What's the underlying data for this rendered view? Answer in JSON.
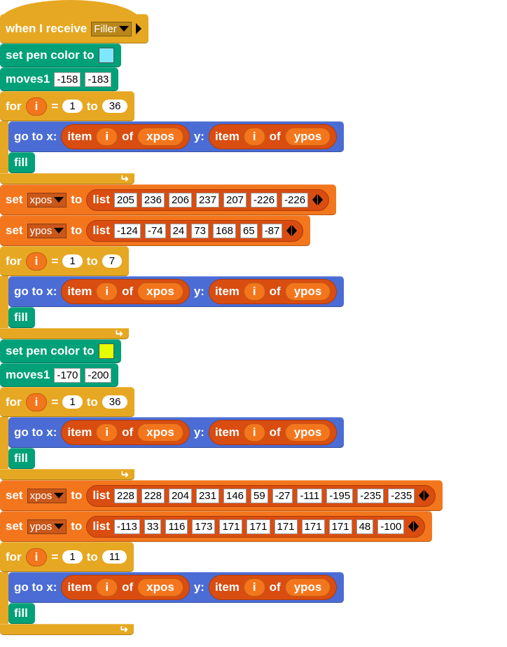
{
  "colors": {
    "control": "#e6a822",
    "pen": "#00a178",
    "motion": "#4a6cd4",
    "variables": "#f3761d",
    "lists": "#d94d11"
  },
  "script": [
    {
      "kind": "hat",
      "parts": [
        {
          "t": "label",
          "v": "when I receive"
        },
        {
          "t": "dropdown",
          "v": "Filler"
        },
        {
          "t": "rtri"
        }
      ]
    },
    {
      "kind": "pen",
      "parts": [
        {
          "t": "label",
          "v": "set pen color to"
        },
        {
          "t": "color",
          "v": "#7fe6ff"
        }
      ]
    },
    {
      "kind": "pen",
      "parts": [
        {
          "t": "label",
          "v": "moves1"
        },
        {
          "t": "input",
          "v": "-158"
        },
        {
          "t": "input",
          "v": "-183"
        }
      ]
    },
    {
      "kind": "for",
      "parts": [
        {
          "t": "label",
          "v": "for"
        },
        {
          "t": "var",
          "v": "i"
        },
        {
          "t": "label",
          "v": "="
        },
        {
          "t": "num",
          "v": "1"
        },
        {
          "t": "label",
          "v": "to"
        },
        {
          "t": "num",
          "v": "36"
        }
      ],
      "body": [
        {
          "kind": "motion",
          "parts": [
            {
              "t": "label",
              "v": "go to x:"
            },
            {
              "t": "rep",
              "parts": [
                {
                  "t": "label",
                  "v": "item"
                },
                {
                  "t": "var",
                  "v": "i"
                },
                {
                  "t": "label",
                  "v": "of"
                },
                {
                  "t": "var",
                  "v": "xpos"
                }
              ]
            },
            {
              "t": "label",
              "v": "y:"
            },
            {
              "t": "rep",
              "parts": [
                {
                  "t": "label",
                  "v": "item"
                },
                {
                  "t": "var",
                  "v": "i"
                },
                {
                  "t": "label",
                  "v": "of"
                },
                {
                  "t": "var",
                  "v": "ypos"
                }
              ]
            }
          ]
        },
        {
          "kind": "fill",
          "parts": [
            {
              "t": "label",
              "v": "fill"
            }
          ]
        }
      ]
    },
    {
      "kind": "var",
      "parts": [
        {
          "t": "label",
          "v": "set"
        },
        {
          "t": "dropdown",
          "v": "xpos"
        },
        {
          "t": "label",
          "v": "to"
        },
        {
          "t": "rep",
          "parts": [
            {
              "t": "label",
              "v": "list"
            },
            {
              "t": "input",
              "v": "205"
            },
            {
              "t": "input",
              "v": "236"
            },
            {
              "t": "input",
              "v": "206"
            },
            {
              "t": "input",
              "v": "237"
            },
            {
              "t": "input",
              "v": "207"
            },
            {
              "t": "input",
              "v": "-226"
            },
            {
              "t": "input",
              "v": "-226"
            },
            {
              "t": "arrows"
            }
          ]
        }
      ]
    },
    {
      "kind": "var",
      "parts": [
        {
          "t": "label",
          "v": "set"
        },
        {
          "t": "dropdown",
          "v": "ypos"
        },
        {
          "t": "label",
          "v": "to"
        },
        {
          "t": "rep",
          "parts": [
            {
              "t": "label",
              "v": "list"
            },
            {
              "t": "input",
              "v": "-124"
            },
            {
              "t": "input",
              "v": "-74"
            },
            {
              "t": "input",
              "v": "24"
            },
            {
              "t": "input",
              "v": "73"
            },
            {
              "t": "input",
              "v": "168"
            },
            {
              "t": "input",
              "v": "65"
            },
            {
              "t": "input",
              "v": "-87"
            },
            {
              "t": "arrows"
            }
          ]
        }
      ]
    },
    {
      "kind": "for",
      "parts": [
        {
          "t": "label",
          "v": "for"
        },
        {
          "t": "var",
          "v": "i"
        },
        {
          "t": "label",
          "v": "="
        },
        {
          "t": "num",
          "v": "1"
        },
        {
          "t": "label",
          "v": "to"
        },
        {
          "t": "num",
          "v": "7"
        }
      ],
      "body": [
        {
          "kind": "motion",
          "parts": [
            {
              "t": "label",
              "v": "go to x:"
            },
            {
              "t": "rep",
              "parts": [
                {
                  "t": "label",
                  "v": "item"
                },
                {
                  "t": "var",
                  "v": "i"
                },
                {
                  "t": "label",
                  "v": "of"
                },
                {
                  "t": "var",
                  "v": "xpos"
                }
              ]
            },
            {
              "t": "label",
              "v": "y:"
            },
            {
              "t": "rep",
              "parts": [
                {
                  "t": "label",
                  "v": "item"
                },
                {
                  "t": "var",
                  "v": "i"
                },
                {
                  "t": "label",
                  "v": "of"
                },
                {
                  "t": "var",
                  "v": "ypos"
                }
              ]
            }
          ]
        },
        {
          "kind": "fill",
          "parts": [
            {
              "t": "label",
              "v": "fill"
            }
          ]
        }
      ]
    },
    {
      "kind": "pen",
      "parts": [
        {
          "t": "label",
          "v": "set pen color to"
        },
        {
          "t": "color",
          "v": "#e6ff00"
        }
      ]
    },
    {
      "kind": "pen",
      "parts": [
        {
          "t": "label",
          "v": "moves1"
        },
        {
          "t": "input",
          "v": "-170"
        },
        {
          "t": "input",
          "v": "-200"
        }
      ]
    },
    {
      "kind": "for",
      "parts": [
        {
          "t": "label",
          "v": "for"
        },
        {
          "t": "var",
          "v": "i"
        },
        {
          "t": "label",
          "v": "="
        },
        {
          "t": "num",
          "v": "1"
        },
        {
          "t": "label",
          "v": "to"
        },
        {
          "t": "num",
          "v": "36"
        }
      ],
      "body": [
        {
          "kind": "motion",
          "parts": [
            {
              "t": "label",
              "v": "go to x:"
            },
            {
              "t": "rep",
              "parts": [
                {
                  "t": "label",
                  "v": "item"
                },
                {
                  "t": "var",
                  "v": "i"
                },
                {
                  "t": "label",
                  "v": "of"
                },
                {
                  "t": "var",
                  "v": "xpos"
                }
              ]
            },
            {
              "t": "label",
              "v": "y:"
            },
            {
              "t": "rep",
              "parts": [
                {
                  "t": "label",
                  "v": "item"
                },
                {
                  "t": "var",
                  "v": "i"
                },
                {
                  "t": "label",
                  "v": "of"
                },
                {
                  "t": "var",
                  "v": "ypos"
                }
              ]
            }
          ]
        },
        {
          "kind": "fill",
          "parts": [
            {
              "t": "label",
              "v": "fill"
            }
          ]
        }
      ]
    },
    {
      "kind": "var",
      "parts": [
        {
          "t": "label",
          "v": "set"
        },
        {
          "t": "dropdown",
          "v": "xpos"
        },
        {
          "t": "label",
          "v": "to"
        },
        {
          "t": "rep",
          "parts": [
            {
              "t": "label",
              "v": "list"
            },
            {
              "t": "input",
              "v": "228"
            },
            {
              "t": "input",
              "v": "228"
            },
            {
              "t": "input",
              "v": "204"
            },
            {
              "t": "input",
              "v": "231"
            },
            {
              "t": "input",
              "v": "146"
            },
            {
              "t": "input",
              "v": "59"
            },
            {
              "t": "input",
              "v": "-27"
            },
            {
              "t": "input",
              "v": "-111"
            },
            {
              "t": "input",
              "v": "-195"
            },
            {
              "t": "input",
              "v": "-235"
            },
            {
              "t": "input",
              "v": "-235"
            },
            {
              "t": "arrows"
            }
          ]
        }
      ]
    },
    {
      "kind": "var",
      "parts": [
        {
          "t": "label",
          "v": "set"
        },
        {
          "t": "dropdown",
          "v": "ypos"
        },
        {
          "t": "label",
          "v": "to"
        },
        {
          "t": "rep",
          "parts": [
            {
              "t": "label",
              "v": "list"
            },
            {
              "t": "input",
              "v": "-113"
            },
            {
              "t": "input",
              "v": "33"
            },
            {
              "t": "input",
              "v": "116"
            },
            {
              "t": "input",
              "v": "173"
            },
            {
              "t": "input",
              "v": "171"
            },
            {
              "t": "input",
              "v": "171"
            },
            {
              "t": "input",
              "v": "171"
            },
            {
              "t": "input",
              "v": "171"
            },
            {
              "t": "input",
              "v": "171"
            },
            {
              "t": "input",
              "v": "48"
            },
            {
              "t": "input",
              "v": "-100"
            },
            {
              "t": "arrows"
            }
          ]
        }
      ]
    },
    {
      "kind": "for",
      "parts": [
        {
          "t": "label",
          "v": "for"
        },
        {
          "t": "var",
          "v": "i"
        },
        {
          "t": "label",
          "v": "="
        },
        {
          "t": "num",
          "v": "1"
        },
        {
          "t": "label",
          "v": "to"
        },
        {
          "t": "num",
          "v": "11"
        }
      ],
      "body": [
        {
          "kind": "motion",
          "parts": [
            {
              "t": "label",
              "v": "go to x:"
            },
            {
              "t": "rep",
              "parts": [
                {
                  "t": "label",
                  "v": "item"
                },
                {
                  "t": "var",
                  "v": "i"
                },
                {
                  "t": "label",
                  "v": "of"
                },
                {
                  "t": "var",
                  "v": "xpos"
                }
              ]
            },
            {
              "t": "label",
              "v": "y:"
            },
            {
              "t": "rep",
              "parts": [
                {
                  "t": "label",
                  "v": "item"
                },
                {
                  "t": "var",
                  "v": "i"
                },
                {
                  "t": "label",
                  "v": "of"
                },
                {
                  "t": "var",
                  "v": "ypos"
                }
              ]
            }
          ]
        },
        {
          "kind": "fill",
          "parts": [
            {
              "t": "label",
              "v": "fill"
            }
          ]
        }
      ]
    }
  ]
}
